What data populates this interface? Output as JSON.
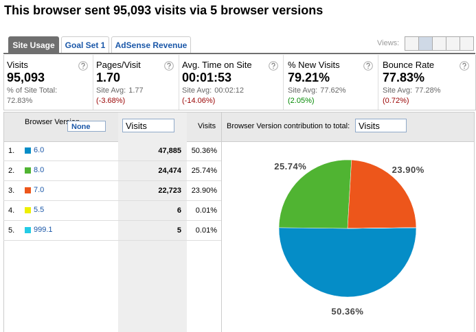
{
  "title": "This browser sent 95,093 visits via 5 browser versions",
  "tabs": [
    "Site Usage",
    "Goal Set 1",
    "AdSense Revenue"
  ],
  "views_label": "Views:",
  "metrics": [
    {
      "label": "Visits",
      "value": "95,093",
      "sub_label": "% of Site Total:",
      "sub_value": "72.83%"
    },
    {
      "label": "Pages/Visit",
      "value": "1.70",
      "sub_label": "Site Avg:",
      "sub_value": "1.77",
      "change": "(-3.68%)",
      "change_color": "#990000"
    },
    {
      "label": "Avg. Time on Site",
      "value": "00:01:53",
      "sub_label": "Site Avg:",
      "sub_value": "00:02:12",
      "change": "(-14.06%)",
      "change_color": "#990000"
    },
    {
      "label": "% New Visits",
      "value": "79.21%",
      "sub_label": "Site Avg:",
      "sub_value": "77.62%",
      "change": "(2.05%)",
      "change_color": "#008800"
    },
    {
      "label": "Bounce Rate",
      "value": "77.83%",
      "sub_label": "Site Avg:",
      "sub_value": "77.28%",
      "change": "(0.72%)",
      "change_color": "#990000"
    }
  ],
  "table": {
    "dimension_header": "Browser Version",
    "segment": "None",
    "metric_select": "Visits",
    "percent_header": "Visits",
    "rows": [
      [
        "1.",
        "6.0",
        "47,885",
        "50.36%"
      ],
      [
        "2.",
        "8.0",
        "24,474",
        "25.74%"
      ],
      [
        "3.",
        "7.0",
        "22,723",
        "23.90%"
      ],
      [
        "4.",
        "5.5",
        "6",
        "0.01%"
      ],
      [
        "5.",
        "999.1",
        "5",
        "0.01%"
      ]
    ]
  },
  "pie": {
    "heading": "Browser Version contribution to total:",
    "metric_select": "Visits",
    "values": [
      50.36,
      25.74,
      23.9,
      0.01,
      0.01
    ],
    "value_labels": [
      "50.36%",
      "25.74%",
      "23.90%",
      null,
      null
    ],
    "colors": [
      "#058dc7",
      "#50b432",
      "#ed561b",
      "#edef00",
      "#24cbe5"
    ]
  }
}
